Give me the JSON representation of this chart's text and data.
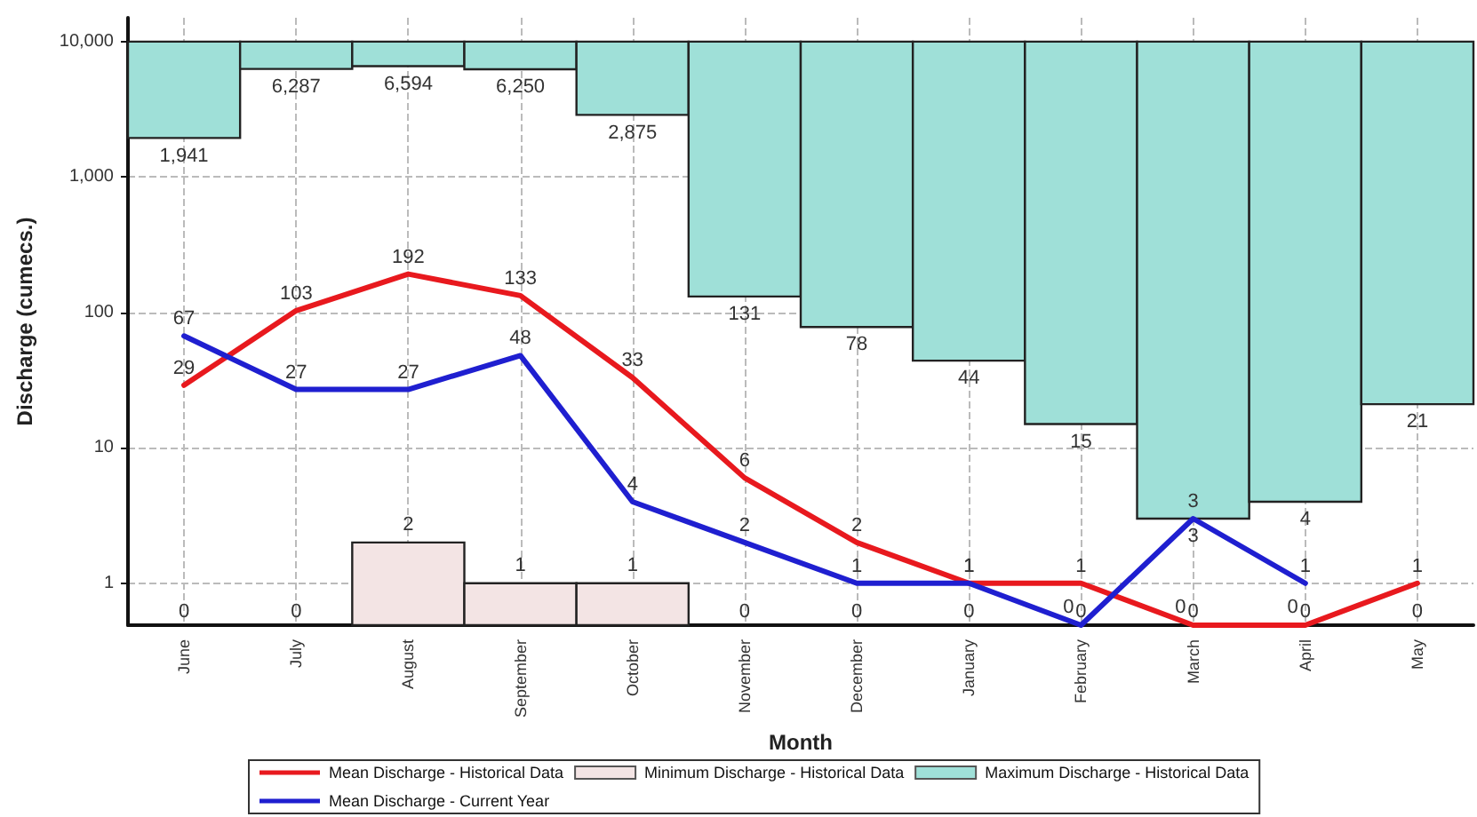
{
  "chart_data": {
    "type": "line",
    "xlabel": "Month",
    "ylabel": "Discharge (cumecs.)",
    "categories": [
      "June",
      "July",
      "August",
      "September",
      "October",
      "November",
      "December",
      "January",
      "February",
      "March",
      "April",
      "May"
    ],
    "log": "y",
    "ylim": [
      0.49,
      15000
    ],
    "yticks": [
      1,
      10,
      100,
      {
        "value": 1000,
        "label": "1,000"
      },
      {
        "value": 10000,
        "label": "10,000"
      }
    ],
    "grid": true,
    "legend": "bottom",
    "marker": "none",
    "line_style": "solid",
    "series": [
      {
        "name": "Mean Discharge - Historical Data",
        "color": "#e8191e",
        "values": [
          29,
          103,
          192,
          133,
          33,
          6,
          2,
          1,
          1,
          0.49,
          0.49,
          1
        ],
        "value_labels": [
          "29",
          "103",
          "192",
          "133",
          "33",
          "6",
          "2",
          "1",
          "1",
          "0",
          "0",
          "1"
        ]
      },
      {
        "name": "Minimum Discharge - Historical Data",
        "type": "bar",
        "color": "#f3e4e4",
        "values": [
          0.49,
          0.49,
          2,
          1,
          1,
          0.49,
          0.49,
          0.49,
          0.49,
          0.49,
          0.49,
          0.49
        ],
        "value_labels": [
          "0",
          "0",
          "2",
          "1",
          "1",
          "0",
          "0",
          "0",
          "0",
          "0",
          "0",
          "0"
        ]
      },
      {
        "name": "Maximum Discharge - Historical Data",
        "type": "bar",
        "color": "#9fe0d8",
        "base": [
          10000,
          10000,
          10000,
          10000,
          10000,
          10000,
          10000,
          10000,
          10000,
          10000,
          10000,
          10000
        ],
        "values": [
          -8059,
          -3713,
          -3406,
          -3750,
          -7125,
          -9869,
          -9922,
          -9956,
          -9985,
          -9997,
          -9996,
          -9979
        ],
        "value_labels": [
          "1,941",
          "6,287",
          "6,594",
          "6,250",
          "2,875",
          "131",
          "78",
          "44",
          "15",
          "3",
          "4",
          "21"
        ]
      },
      {
        "name": "Mean Discharge - Current Year",
        "color": "#1f1fd0",
        "values": [
          67,
          27,
          27,
          48,
          4,
          2,
          1,
          1,
          0.49,
          3,
          1,
          null
        ],
        "value_labels": [
          "67",
          "27",
          "27",
          "48",
          "4",
          "2",
          "1",
          "1",
          "0",
          "3",
          "1",
          null
        ]
      }
    ]
  }
}
